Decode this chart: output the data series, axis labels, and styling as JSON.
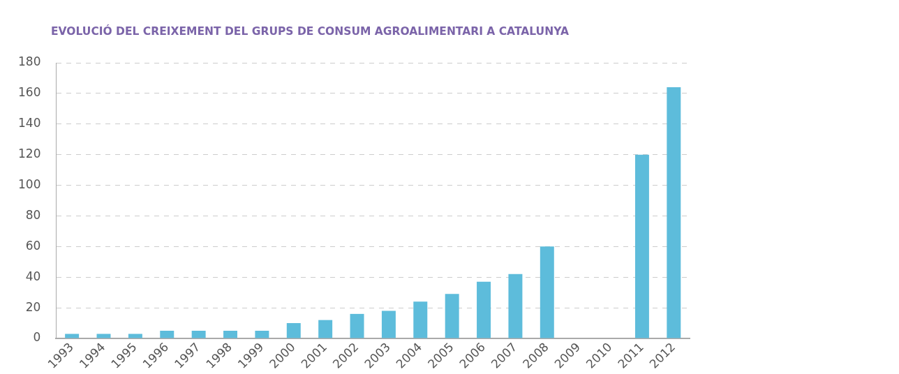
{
  "chart_data": {
    "type": "bar",
    "title": "EVOLUCIÓ DEL CREIXEMENT DEL GRUPS DE CONSUM AGROALIMENTARI A CATALUNYA",
    "categories": [
      "1993",
      "1994",
      "1995",
      "1996",
      "1997",
      "1998",
      "1999",
      "2000",
      "2001",
      "2002",
      "2003",
      "2004",
      "2005",
      "2006",
      "2007",
      "2008",
      "2009",
      "2010",
      "2011",
      "2012"
    ],
    "values": [
      3,
      3,
      3,
      5,
      5,
      5,
      5,
      10,
      12,
      16,
      18,
      24,
      29,
      37,
      42,
      60,
      null,
      null,
      120,
      164
    ],
    "color": "#5dbcdb",
    "ylim": [
      0,
      180
    ],
    "yticks": [
      0,
      20,
      40,
      60,
      80,
      100,
      120,
      140,
      160,
      180
    ],
    "grid": "y"
  }
}
